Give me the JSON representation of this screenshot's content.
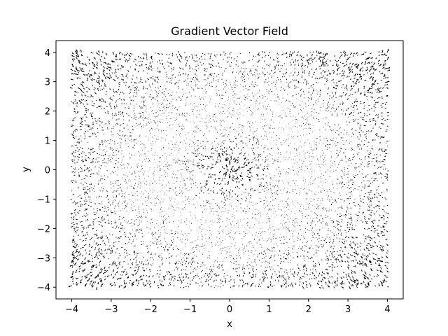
{
  "chart_data": {
    "type": "quiver",
    "title": "Gradient Vector Field",
    "xlabel": "x",
    "ylabel": "y",
    "xlim": [
      -4.4,
      4.4
    ],
    "ylim": [
      -4.4,
      4.4
    ],
    "domain_x": [
      -4,
      4
    ],
    "domain_y": [
      -4,
      4
    ],
    "xticks": [
      -4,
      -3,
      -2,
      -1,
      0,
      1,
      2,
      3,
      4
    ],
    "yticks": [
      -4,
      -3,
      -2,
      -1,
      0,
      1,
      2,
      3,
      4
    ],
    "xtick_labels": [
      "−4",
      "−3",
      "−2",
      "−1",
      "0",
      "1",
      "2",
      "3",
      "4"
    ],
    "ytick_labels": [
      "−4",
      "−3",
      "−2",
      "−1",
      "0",
      "1",
      "2",
      "3",
      "4"
    ],
    "grid": false,
    "legend": null,
    "arrow_color": "#000000",
    "field": "gradient of a radially symmetric function; magnitude small near radius ~2, larger at center and corners",
    "sample_points": 7000
  }
}
